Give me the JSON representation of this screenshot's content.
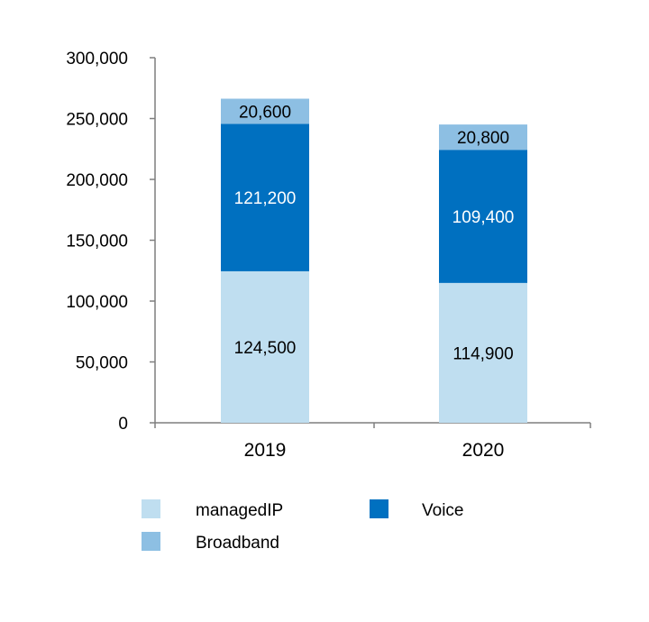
{
  "chart_data": {
    "type": "bar",
    "stacked": true,
    "categories": [
      "2019",
      "2020"
    ],
    "series": [
      {
        "name": "managedIP",
        "values": [
          124500,
          114900
        ],
        "labels": [
          "124,500",
          "114,900"
        ],
        "color": "#bfdef0",
        "label_color": "#000000"
      },
      {
        "name": "Voice",
        "values": [
          121200,
          109400
        ],
        "labels": [
          "121,200",
          "109,400"
        ],
        "color": "#0070c0",
        "label_color": "#ffffff"
      },
      {
        "name": "Broadband",
        "values": [
          20600,
          20800
        ],
        "labels": [
          "20,600",
          "20,800"
        ],
        "color": "#8dbfe3",
        "label_color": "#000000"
      }
    ],
    "yticks": [
      "0",
      "50,000",
      "100,000",
      "150,000",
      "200,000",
      "250,000",
      "300,000"
    ],
    "ylim": [
      0,
      300000
    ],
    "title": "",
    "xlabel": "",
    "ylabel": "",
    "grid": false,
    "legend_position": "bottom"
  }
}
